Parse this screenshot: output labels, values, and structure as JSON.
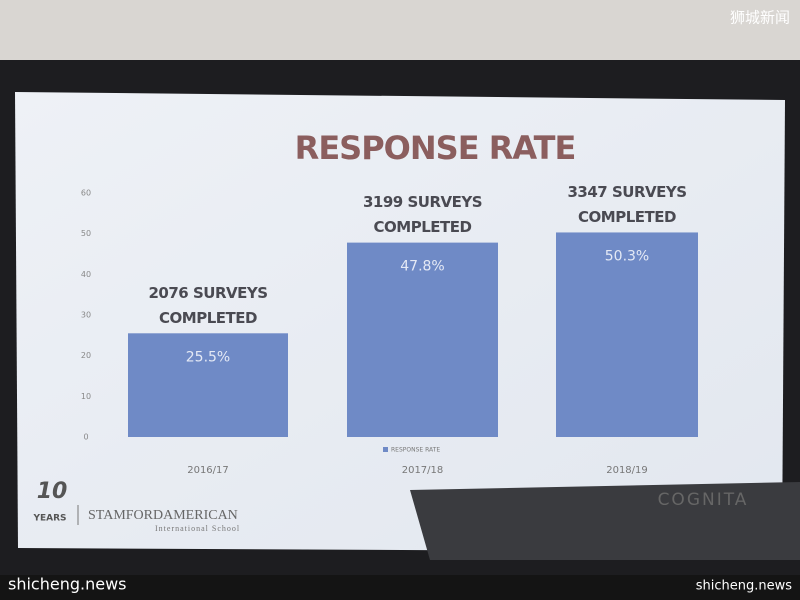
{
  "chart_data": {
    "type": "bar",
    "title": "RESPONSE RATE",
    "categories": [
      "2016/17",
      "2017/18",
      "2018/19"
    ],
    "values": [
      25.5,
      47.8,
      50.3
    ],
    "value_labels": [
      "25.5%",
      "47.8%",
      "50.3%"
    ],
    "annotations": [
      [
        "2076 SURVEYS",
        "COMPLETED"
      ],
      [
        "3199 SURVEYS",
        "COMPLETED"
      ],
      [
        "3347 SURVEYS",
        "COMPLETED"
      ]
    ],
    "series_name": "RESPONSE RATE",
    "color": "#6f8ac6",
    "ylim": [
      0,
      60
    ],
    "yticks": [
      0,
      10,
      20,
      30,
      40,
      50,
      60
    ],
    "grid": false
  },
  "logos": {
    "years_number": "10",
    "years_word": "YEARS",
    "school": "STAMFORDAMERICAN",
    "school_sub": "International School",
    "company": "COGNITA"
  },
  "watermarks": {
    "top_right": "狮城新闻",
    "bottom_left": "shicheng.news",
    "bottom_right": "shicheng.news"
  }
}
